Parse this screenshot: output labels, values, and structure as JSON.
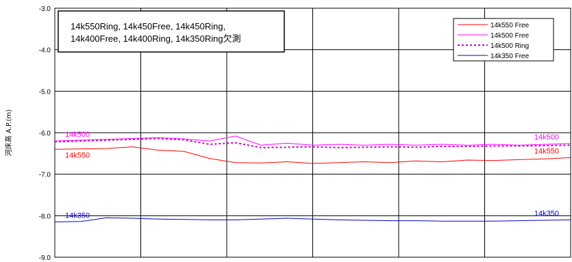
{
  "chart_data": {
    "type": "line",
    "title": "",
    "xlabel": "",
    "ylabel": "河床高 A.P.(m)",
    "ylim": [
      -9.0,
      -3.0
    ],
    "y_ticks": [
      "-3.0",
      "-4.0",
      "-5.0",
      "-6.0",
      "-7.0",
      "-8.0",
      "-9.0"
    ],
    "x_grid_divisions": 6,
    "grid": true,
    "legend_position": "top-right",
    "annotation": {
      "line1": "14k550Ring, 14k450Free, 14k450Ring,",
      "line2": "14k400Free, 14k400Ring, 14k350Ring欠測"
    },
    "series": [
      {
        "name": "14k550 Free",
        "color": "#ff0000",
        "dash": "solid",
        "label_left": "14k550",
        "label_right": "14k550",
        "x": [
          0,
          10,
          15,
          20,
          25,
          30,
          35,
          40,
          45,
          50,
          55,
          60,
          65,
          70,
          75,
          80,
          85,
          90,
          95,
          100
        ],
        "values": [
          -6.4,
          -6.38,
          -6.34,
          -6.42,
          -6.45,
          -6.62,
          -6.72,
          -6.73,
          -6.7,
          -6.74,
          -6.72,
          -6.7,
          -6.72,
          -6.68,
          -6.7,
          -6.66,
          -6.67,
          -6.65,
          -6.63,
          -6.6
        ]
      },
      {
        "name": "14k500 Free",
        "color": "#ff00ff",
        "dash": "solid",
        "label_left": "14k500",
        "label_right": "14k500",
        "x": [
          0,
          10,
          20,
          25,
          30,
          35,
          40,
          45,
          50,
          55,
          60,
          65,
          70,
          75,
          80,
          85,
          90,
          95,
          100
        ],
        "values": [
          -6.2,
          -6.16,
          -6.12,
          -6.15,
          -6.2,
          -6.08,
          -6.3,
          -6.25,
          -6.3,
          -6.28,
          -6.3,
          -6.28,
          -6.3,
          -6.28,
          -6.3,
          -6.28,
          -6.3,
          -6.28,
          -6.26
        ]
      },
      {
        "name": "14k500 Ring",
        "color": "#cc00cc",
        "dash": "dot",
        "label_left": "",
        "label_right": "",
        "x": [
          0,
          10,
          20,
          25,
          30,
          35,
          40,
          45,
          50,
          55,
          60,
          65,
          70,
          75,
          80,
          85,
          90,
          95,
          100
        ],
        "values": [
          -6.22,
          -6.18,
          -6.14,
          -6.17,
          -6.28,
          -6.24,
          -6.36,
          -6.35,
          -6.34,
          -6.36,
          -6.35,
          -6.34,
          -6.35,
          -6.33,
          -6.33,
          -6.32,
          -6.32,
          -6.31,
          -6.3
        ]
      },
      {
        "name": "14k350 Free",
        "color": "#0000cc",
        "dash": "solid",
        "label_left": "14k350",
        "label_right": "14k350",
        "x": [
          0,
          5,
          10,
          15,
          20,
          25,
          30,
          35,
          40,
          45,
          50,
          55,
          60,
          65,
          70,
          75,
          80,
          85,
          90,
          95,
          100
        ],
        "values": [
          -8.15,
          -8.14,
          -8.05,
          -8.06,
          -8.08,
          -8.09,
          -8.1,
          -8.1,
          -8.08,
          -8.06,
          -8.08,
          -8.1,
          -8.11,
          -8.12,
          -8.12,
          -8.13,
          -8.13,
          -8.13,
          -8.12,
          -8.11,
          -8.1
        ]
      }
    ]
  }
}
